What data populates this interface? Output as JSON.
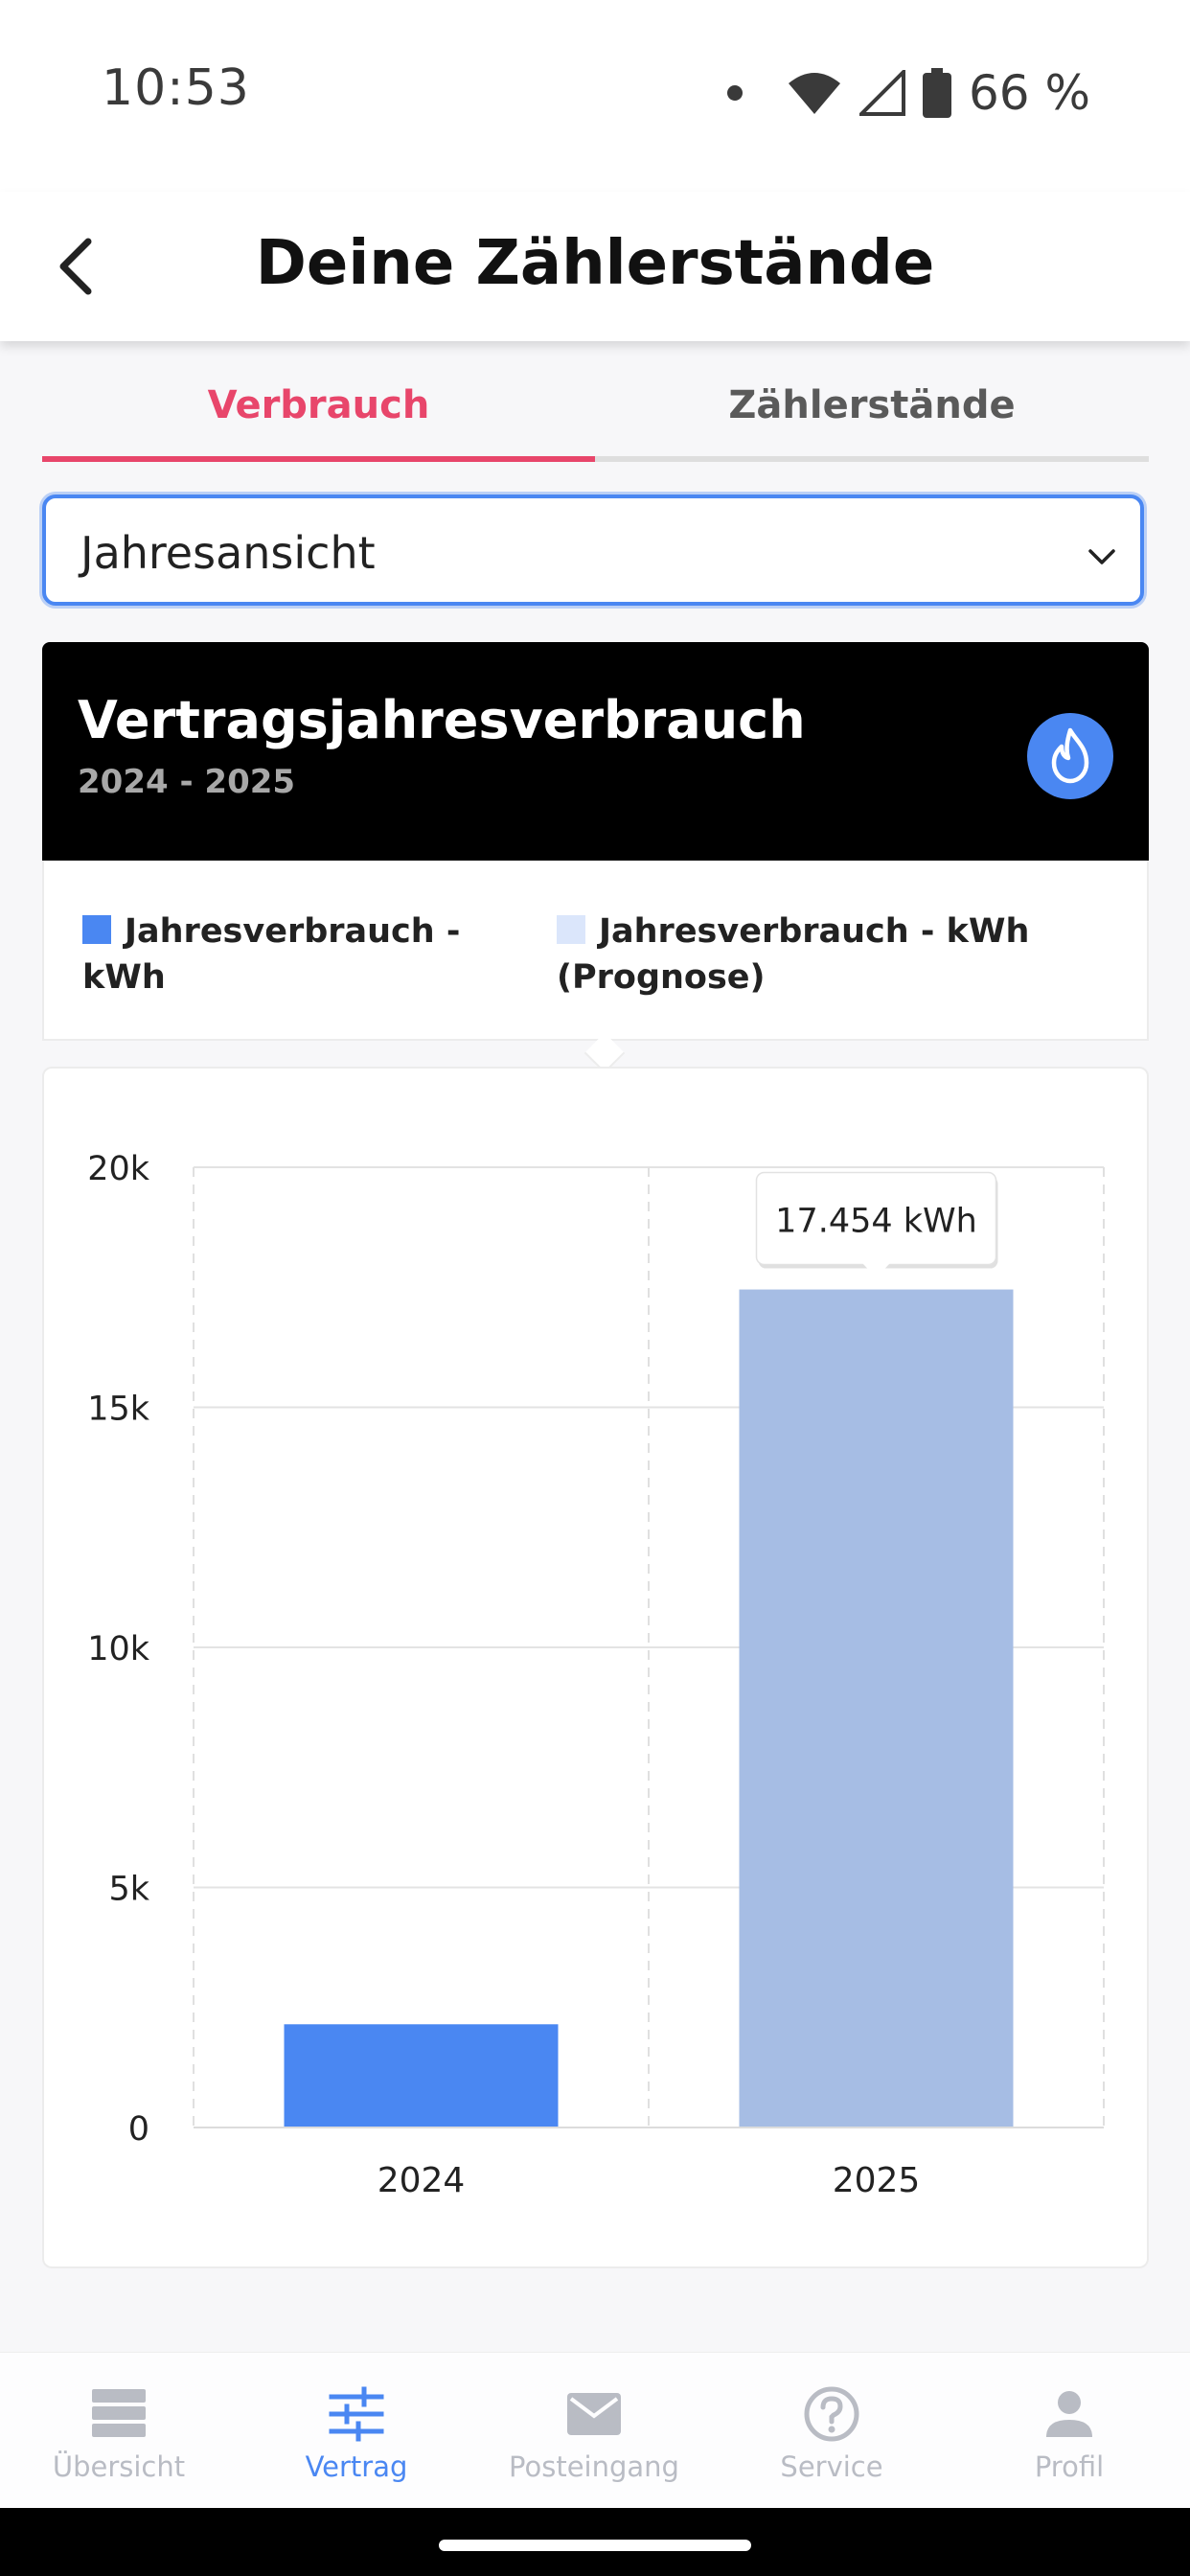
{
  "status_bar": {
    "time": "10:53",
    "battery": "66 %"
  },
  "header": {
    "title": "Deine Zählerstände"
  },
  "tabs": [
    {
      "label": "Verbrauch",
      "active": true
    },
    {
      "label": "Zählerstände",
      "active": false
    }
  ],
  "view_select": {
    "value": "Jahresansicht"
  },
  "card": {
    "title": "Vertragsjahresverbrauch",
    "subtitle": "2024 - 2025",
    "icon": "flame-icon"
  },
  "legend": [
    {
      "label": "Jahresverbrauch - kWh",
      "color": "#4a87f2"
    },
    {
      "label": "Jahresverbrauch - kWh (Prognose)",
      "color": "#dbe6fb"
    }
  ],
  "chart_data": {
    "type": "bar",
    "categories": [
      "2024",
      "2025"
    ],
    "series": [
      {
        "name": "Jahresverbrauch - kWh",
        "values": [
          2150,
          null
        ],
        "color": "#4a87f2"
      },
      {
        "name": "Jahresverbrauch - kWh (Prognose)",
        "values": [
          null,
          17454
        ],
        "color": "#a6bde4"
      }
    ],
    "yticks": [
      0,
      5000,
      10000,
      15000,
      20000
    ],
    "ytick_labels": [
      "0",
      "5k",
      "10k",
      "15k",
      "20k"
    ],
    "ylim": [
      0,
      20000
    ],
    "grid": true,
    "tooltip": {
      "category": "2025",
      "text": "17.454 kWh"
    }
  },
  "bottom_nav": [
    {
      "label": "Übersicht",
      "icon": "overview-icon",
      "active": false
    },
    {
      "label": "Vertrag",
      "icon": "contract-sliders-icon",
      "active": true
    },
    {
      "label": "Posteingang",
      "icon": "mail-icon",
      "active": false
    },
    {
      "label": "Service",
      "icon": "help-icon",
      "active": false
    },
    {
      "label": "Profil",
      "icon": "person-icon",
      "active": false
    }
  ],
  "colors": {
    "accent_pink": "#e8466b",
    "accent_blue": "#4a87f2"
  }
}
